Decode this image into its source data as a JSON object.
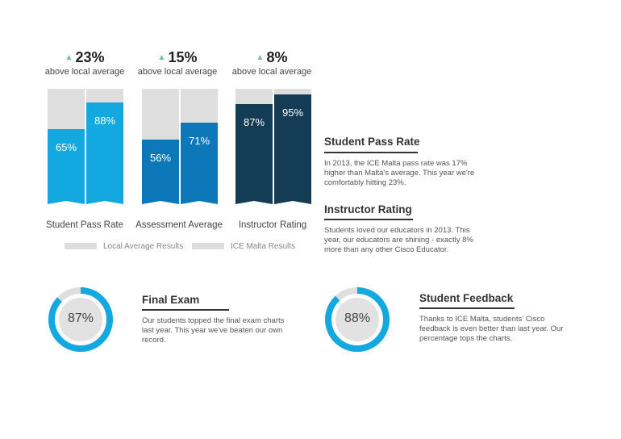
{
  "kpis": [
    {
      "value": "23%",
      "label": "above local average"
    },
    {
      "value": "15%",
      "label": "above local average"
    },
    {
      "value": "8%",
      "label": "above local average"
    }
  ],
  "chart_data": {
    "type": "bar",
    "categories": [
      "Student Pass Rate",
      "Assessment Average",
      "Instructor Rating"
    ],
    "series": [
      {
        "name": "Local Average Results",
        "values": [
          65,
          56,
          87
        ],
        "labels": [
          "65%",
          "56%",
          "87%"
        ]
      },
      {
        "name": "ICE Malta Results",
        "values": [
          88,
          71,
          95
        ],
        "labels": [
          "88%",
          "71%",
          "95%"
        ]
      }
    ],
    "ylim": [
      0,
      100
    ],
    "colors": {
      "group1": "#14a8e1",
      "group2": "#0c77b9",
      "group3": "#143c55",
      "background": "#dedede"
    },
    "legend_position": "bottom"
  },
  "sections": {
    "pass_rate": {
      "title": "Student Pass Rate",
      "text_lines": [
        "In 2013, the ICE Malta pass rate was 17%",
        "higher than Malta's average. This year we're",
        "comfortably hitting 23%."
      ]
    },
    "instructor": {
      "title": "Instructor Rating",
      "text_lines": [
        "Students loved our educators in 2013. This",
        "year, our educators are shining - exactly 8%",
        "more than any other Cisco Educator."
      ]
    },
    "final_exam": {
      "title": "Final Exam",
      "value": "87%",
      "percent": 87,
      "text_lines": [
        "Our students topped the final exam charts",
        "last year. This year we've beaten our own",
        "record."
      ]
    },
    "feedback": {
      "title": "Student Feedback",
      "value": "88%",
      "percent": 88,
      "text_lines": [
        "Thanks to ICE Malta, students' Cisco",
        "feedback is even better than last year. Our",
        "percentage tops the charts."
      ]
    }
  },
  "accent_color": "#14a8e1",
  "kpi_arrow_color": "#6fbfa0"
}
